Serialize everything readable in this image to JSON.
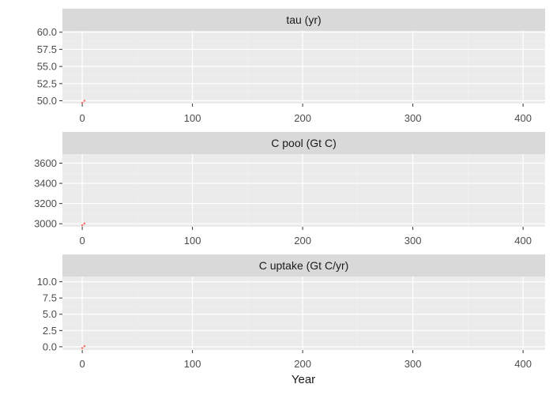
{
  "chart_data": {
    "type": "scatter",
    "layout": "faceted-vertical",
    "xlabel": "Year",
    "grid": true,
    "legend": "none",
    "colors": {
      "panel_background": "#EBEBEB",
      "strip_background": "#D9D9D9",
      "grid_major": "#FFFFFF",
      "grid_minor": "#F2F2F2",
      "point": "#F8766D",
      "text": "#1A1A1A",
      "tick_text": "#4D4D4D"
    },
    "facets": [
      {
        "strip_label": "tau (yr)",
        "xlim": [
          -18,
          420
        ],
        "ylim": [
          49.6,
          60.2
        ],
        "x_ticks": [
          0,
          100,
          200,
          300,
          400
        ],
        "x_tick_labels": [
          "0",
          "100",
          "200",
          "300",
          "400"
        ],
        "y_ticks": [
          50,
          52.5,
          55,
          57.5,
          60
        ],
        "y_tick_labels": [
          "50.0",
          "52.5",
          "55.0",
          "57.5",
          "60.0"
        ],
        "points": [
          {
            "x": 0,
            "y": 49.7
          },
          {
            "x": 2,
            "y": 50.0
          }
        ]
      },
      {
        "strip_label": "C pool (Gt C)",
        "xlim": [
          -18,
          420
        ],
        "ylim": [
          2970,
          3690
        ],
        "x_ticks": [
          0,
          100,
          200,
          300,
          400
        ],
        "x_tick_labels": [
          "0",
          "100",
          "200",
          "300",
          "400"
        ],
        "y_ticks": [
          3000,
          3200,
          3400,
          3600
        ],
        "y_tick_labels": [
          "3000",
          "3200",
          "3400",
          "3600"
        ],
        "points": [
          {
            "x": 0,
            "y": 2985
          },
          {
            "x": 2,
            "y": 3002
          }
        ]
      },
      {
        "strip_label": "C uptake (Gt C/yr)",
        "xlim": [
          -18,
          420
        ],
        "ylim": [
          -0.5,
          10.8
        ],
        "x_ticks": [
          0,
          100,
          200,
          300,
          400
        ],
        "x_tick_labels": [
          "0",
          "100",
          "200",
          "300",
          "400"
        ],
        "y_ticks": [
          0,
          2.5,
          5,
          7.5,
          10
        ],
        "y_tick_labels": [
          "0.0",
          "2.5",
          "5.0",
          "7.5",
          "10.0"
        ],
        "points": [
          {
            "x": 0,
            "y": -0.2
          },
          {
            "x": 2,
            "y": 0.1
          }
        ]
      }
    ]
  }
}
